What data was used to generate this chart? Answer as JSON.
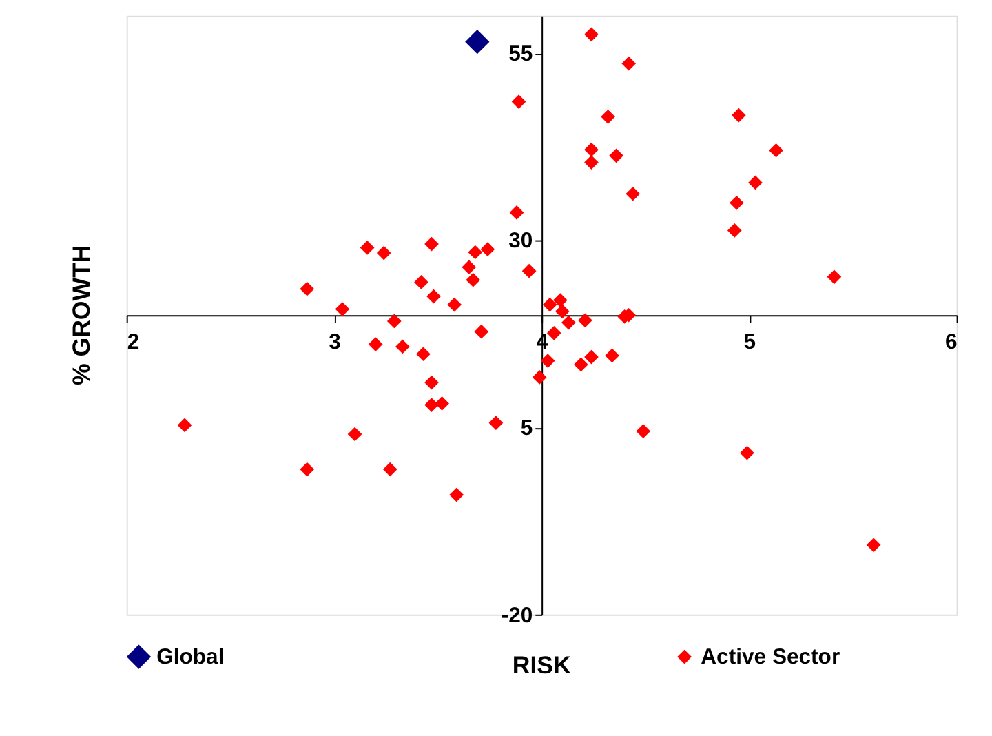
{
  "chart_data": {
    "type": "scatter",
    "xlabel": "RISK",
    "ylabel": "% GROWTH",
    "xlim": [
      2,
      6
    ],
    "ylim": [
      -20,
      60
    ],
    "xticks": [
      2,
      3,
      4,
      5,
      6
    ],
    "yticks": [
      -20,
      5,
      30,
      55
    ],
    "marker": "diamond",
    "legend": "bottom",
    "series": [
      {
        "name": "Global",
        "color": "#000080",
        "x": [
          3.69
        ],
        "values": [
          56.5
        ]
      },
      {
        "name": "Active Sector",
        "color": "#ff0000",
        "x": [
          4.24,
          4.42,
          3.89,
          4.32,
          4.95,
          4.24,
          4.36,
          5.13,
          4.24,
          5.03,
          4.44,
          4.94,
          3.88,
          4.93,
          3.16,
          3.47,
          3.24,
          3.68,
          3.74,
          3.65,
          3.94,
          5.41,
          2.87,
          3.42,
          3.67,
          3.48,
          3.58,
          3.04,
          4.04,
          4.09,
          4.1,
          4.13,
          4.21,
          4.4,
          4.42,
          3.29,
          3.71,
          4.06,
          3.2,
          3.33,
          3.43,
          4.34,
          4.24,
          4.19,
          4.03,
          3.99,
          3.47,
          3.47,
          3.52,
          3.78,
          2.28,
          3.1,
          4.49,
          4.99,
          2.87,
          3.27,
          3.59,
          5.6
        ],
        "values": [
          57.5,
          53.6,
          48.5,
          46.5,
          46.7,
          42.1,
          41.3,
          42.0,
          40.4,
          37.7,
          36.2,
          35.0,
          33.7,
          31.3,
          29.0,
          29.5,
          28.3,
          28.4,
          28.8,
          26.4,
          25.9,
          25.1,
          23.5,
          24.4,
          24.7,
          22.5,
          21.4,
          20.8,
          21.4,
          22.0,
          20.5,
          19.0,
          19.3,
          19.8,
          20.0,
          19.2,
          17.8,
          17.6,
          16.1,
          15.8,
          14.8,
          14.6,
          14.4,
          13.4,
          13.9,
          11.7,
          11.0,
          8.0,
          8.2,
          5.6,
          5.3,
          4.1,
          4.5,
          1.6,
          -0.6,
          -0.6,
          -4.0,
          -10.7
        ]
      }
    ]
  }
}
